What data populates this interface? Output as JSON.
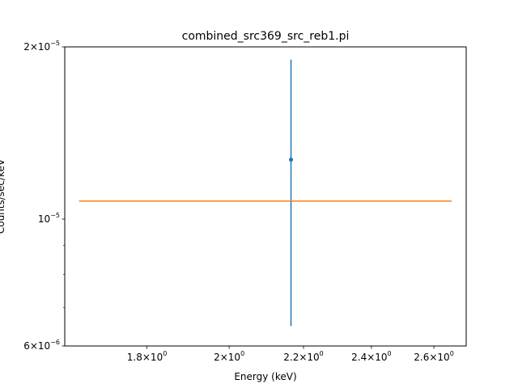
{
  "chart_data": {
    "type": "scatter",
    "title": "combined_src369_src_reb1.pi",
    "xlabel": "Energy (keV)",
    "ylabel": "Counts/sec/keV",
    "xscale": "log",
    "yscale": "log",
    "xlim": [
      1.62,
      2.71
    ],
    "ylim": [
      6e-06,
      2e-05
    ],
    "x_ticks": [
      {
        "value": 1.8,
        "mantissa": "1.8",
        "exp": "0"
      },
      {
        "value": 2.0,
        "mantissa": "2",
        "exp": "0"
      },
      {
        "value": 2.2,
        "mantissa": "2.2",
        "exp": "0"
      },
      {
        "value": 2.4,
        "mantissa": "2.4",
        "exp": "0"
      },
      {
        "value": 2.6,
        "mantissa": "2.6",
        "exp": "0"
      }
    ],
    "y_ticks": [
      {
        "value": 2e-05,
        "mantissa": "2",
        "exp": "−5",
        "mult": true
      },
      {
        "value": 1e-05,
        "mantissa": "10",
        "exp": "−5",
        "mult": false
      },
      {
        "value": 6e-06,
        "mantissa": "6",
        "exp": "−6",
        "mult": true
      }
    ],
    "series": [
      {
        "kind": "data",
        "color": "#1f77b4",
        "points": [
          {
            "x": 2.165,
            "y": 1.27e-05,
            "ylow": 6.5e-06,
            "yhigh": 1.9e-05
          }
        ]
      },
      {
        "kind": "model",
        "color": "#ff7f0e",
        "x": [
          1.65,
          2.66
        ],
        "y": [
          1.075e-05,
          1.075e-05
        ]
      }
    ]
  }
}
